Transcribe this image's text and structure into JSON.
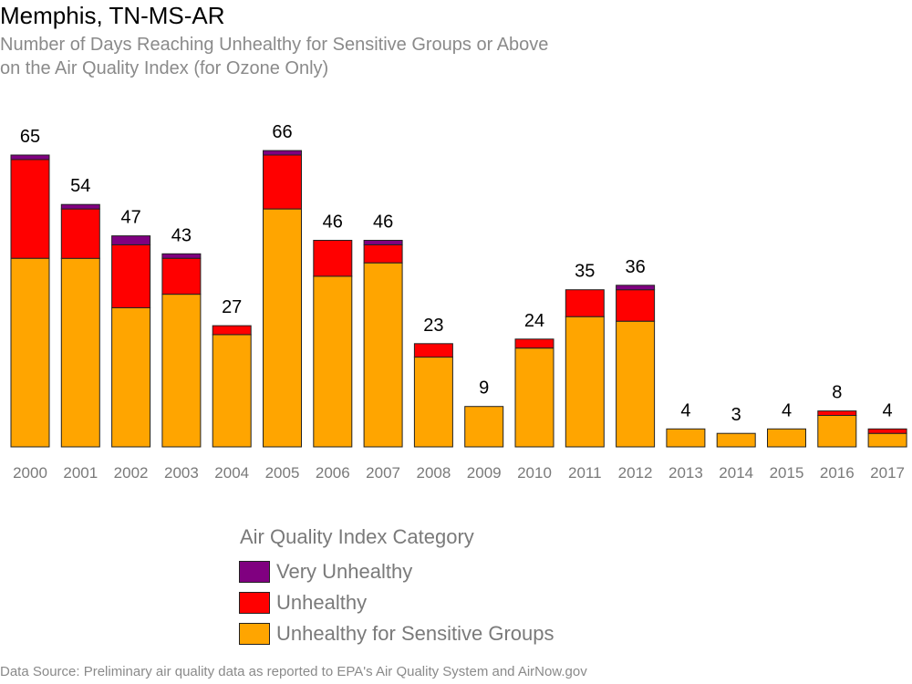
{
  "header": {
    "title": "Memphis, TN-MS-AR",
    "subtitle_line1": "Number of Days Reaching Unhealthy for Sensitive Groups or Above",
    "subtitle_line2": "on the Air Quality Index (for Ozone Only)"
  },
  "legend": {
    "title": "Air Quality Index Category",
    "placement": "bottom-center",
    "items": [
      {
        "label": "Very Unhealthy",
        "color": "#800080"
      },
      {
        "label": "Unhealthy",
        "color": "#ff0000"
      },
      {
        "label": "Unhealthy for Sensitive Groups",
        "color": "#ffa500"
      }
    ]
  },
  "footer": {
    "source": "Data Source: Preliminary air quality data as reported to EPA's Air Quality System and AirNow.gov"
  },
  "chart_data": {
    "type": "bar",
    "stacked": true,
    "categories": [
      "2000",
      "2001",
      "2002",
      "2003",
      "2004",
      "2005",
      "2006",
      "2007",
      "2008",
      "2009",
      "2010",
      "2011",
      "2012",
      "2013",
      "2014",
      "2015",
      "2016",
      "2017"
    ],
    "series": [
      {
        "name": "Unhealthy for Sensitive Groups",
        "color": "#ffa500",
        "values": [
          42,
          42,
          31,
          34,
          25,
          53,
          38,
          41,
          20,
          9,
          22,
          29,
          28,
          4,
          3,
          4,
          7,
          3
        ]
      },
      {
        "name": "Unhealthy",
        "color": "#ff0000",
        "values": [
          22,
          11,
          14,
          8,
          2,
          12,
          8,
          4,
          3,
          0,
          2,
          6,
          7,
          0,
          0,
          0,
          1,
          1
        ]
      },
      {
        "name": "Very Unhealthy",
        "color": "#800080",
        "values": [
          1,
          1,
          2,
          1,
          0,
          1,
          0,
          1,
          0,
          0,
          0,
          0,
          1,
          0,
          0,
          0,
          0,
          0
        ]
      }
    ],
    "totals": [
      65,
      54,
      47,
      43,
      27,
      66,
      46,
      46,
      23,
      9,
      24,
      35,
      36,
      4,
      3,
      4,
      8,
      4
    ],
    "ylim": [
      0,
      70
    ],
    "grid": false,
    "xlabel": "",
    "ylabel": ""
  }
}
